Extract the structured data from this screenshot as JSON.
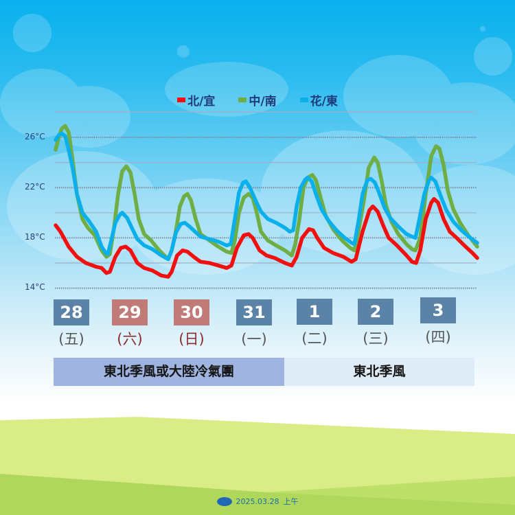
{
  "legend": [
    {
      "label": "北/宜",
      "color": "#f20f0f"
    },
    {
      "label": "中/南",
      "color": "#6fad45"
    },
    {
      "label": "花/東",
      "color": "#0bb0ea"
    }
  ],
  "yaxis_ticks": [
    {
      "label": "26°C",
      "value": 26
    },
    {
      "label": "22°C",
      "value": 22
    },
    {
      "label": "18°C",
      "value": 18
    },
    {
      "label": "14°C",
      "value": 14
    }
  ],
  "days": [
    {
      "date": "28",
      "weekday": "(五)",
      "type": "weekday",
      "box_color": "#5b83a8",
      "text_color": "#555555"
    },
    {
      "date": "29",
      "weekday": "(六)",
      "type": "weekend",
      "box_color": "#c07a78",
      "text_color": "#8a2a2a"
    },
    {
      "date": "30",
      "weekday": "(日)",
      "type": "weekend",
      "box_color": "#c07a78",
      "text_color": "#8a2a2a"
    },
    {
      "date": "31",
      "weekday": "(一)",
      "type": "weekday",
      "box_color": "#5b83a8",
      "text_color": "#555555"
    },
    {
      "date": "1",
      "weekday": "(二)",
      "type": "weekday",
      "box_color": "#5b83a8",
      "text_color": "#555555"
    },
    {
      "date": "2",
      "weekday": "(三)",
      "type": "weekday",
      "box_color": "#5b83a8",
      "text_color": "#555555"
    },
    {
      "date": "3",
      "weekday": "(四)",
      "type": "weekday",
      "box_color": "#5b83a8",
      "text_color": "#555555"
    }
  ],
  "banners": [
    {
      "label": "東北季風或大陸冷氣團",
      "color": "#9fb4e0"
    },
    {
      "label": "東北季風",
      "color": "#ddecf6"
    }
  ],
  "footer": {
    "date": "2025.03.28",
    "period": "上午"
  },
  "chart_data": {
    "type": "line",
    "title": "",
    "xlabel": "",
    "ylabel": "°C",
    "ylim": [
      14,
      28
    ],
    "grid": true,
    "legend_position": "top",
    "categories": [
      "28 (五)",
      "29 (六)",
      "30 (日)",
      "31 (一)",
      "1 (二)",
      "2 (三)",
      "3 (四)"
    ],
    "x_note": "x = horizontal position across the 7-day span (81 = start of 28th, 695 = end of 3rd)",
    "series": [
      {
        "name": "北/宜",
        "color": "#f20f0f",
        "points": [
          [
            81,
            19.0
          ],
          [
            88,
            18.5
          ],
          [
            100,
            17.3
          ],
          [
            112,
            16.5
          ],
          [
            125,
            16.0
          ],
          [
            140,
            15.7
          ],
          [
            148,
            15.6
          ],
          [
            155,
            15.2
          ],
          [
            160,
            15.3
          ],
          [
            168,
            16.5
          ],
          [
            176,
            17.2
          ],
          [
            183,
            17.3
          ],
          [
            190,
            17.0
          ],
          [
            200,
            16.0
          ],
          [
            210,
            15.6
          ],
          [
            222,
            15.4
          ],
          [
            235,
            15.0
          ],
          [
            245,
            14.9
          ],
          [
            250,
            15.3
          ],
          [
            258,
            16.6
          ],
          [
            266,
            17.0
          ],
          [
            273,
            16.9
          ],
          [
            282,
            16.5
          ],
          [
            292,
            16.1
          ],
          [
            305,
            16.0
          ],
          [
            318,
            15.8
          ],
          [
            330,
            15.6
          ],
          [
            337,
            15.8
          ],
          [
            345,
            17.2
          ],
          [
            355,
            18.2
          ],
          [
            362,
            18.3
          ],
          [
            368,
            18.0
          ],
          [
            378,
            17.0
          ],
          [
            388,
            16.6
          ],
          [
            400,
            16.4
          ],
          [
            415,
            16.0
          ],
          [
            425,
            15.8
          ],
          [
            432,
            16.5
          ],
          [
            440,
            18.0
          ],
          [
            450,
            18.7
          ],
          [
            456,
            18.6
          ],
          [
            462,
            18.0
          ],
          [
            472,
            17.2
          ],
          [
            485,
            16.8
          ],
          [
            500,
            16.5
          ],
          [
            512,
            16.1
          ],
          [
            518,
            16.3
          ],
          [
            528,
            18.5
          ],
          [
            538,
            20.2
          ],
          [
            543,
            20.5
          ],
          [
            550,
            20.1
          ],
          [
            558,
            19.0
          ],
          [
            566,
            18.0
          ],
          [
            578,
            17.4
          ],
          [
            592,
            16.6
          ],
          [
            600,
            16.1
          ],
          [
            606,
            16.0
          ],
          [
            612,
            17.0
          ],
          [
            620,
            19.5
          ],
          [
            628,
            20.8
          ],
          [
            632,
            21.1
          ],
          [
            638,
            20.8
          ],
          [
            646,
            19.5
          ],
          [
            655,
            18.5
          ],
          [
            665,
            18.0
          ],
          [
            678,
            17.3
          ],
          [
            688,
            16.8
          ],
          [
            695,
            16.4
          ]
        ]
      },
      {
        "name": "中/南",
        "color": "#6fad45",
        "points": [
          [
            81,
            25.0
          ],
          [
            85,
            25.9
          ],
          [
            90,
            26.7
          ],
          [
            95,
            26.9
          ],
          [
            100,
            26.4
          ],
          [
            105,
            24.5
          ],
          [
            112,
            21.5
          ],
          [
            120,
            19.5
          ],
          [
            128,
            18.8
          ],
          [
            138,
            18.2
          ],
          [
            148,
            17.0
          ],
          [
            155,
            16.5
          ],
          [
            160,
            16.7
          ],
          [
            166,
            18.8
          ],
          [
            172,
            21.5
          ],
          [
            178,
            23.3
          ],
          [
            184,
            23.7
          ],
          [
            190,
            23.2
          ],
          [
            196,
            21.5
          ],
          [
            202,
            19.5
          ],
          [
            210,
            18.3
          ],
          [
            220,
            17.8
          ],
          [
            232,
            17.0
          ],
          [
            245,
            16.3
          ],
          [
            250,
            17.0
          ],
          [
            256,
            18.5
          ],
          [
            262,
            20.5
          ],
          [
            268,
            21.3
          ],
          [
            273,
            21.5
          ],
          [
            278,
            21.0
          ],
          [
            285,
            19.5
          ],
          [
            292,
            18.3
          ],
          [
            305,
            17.8
          ],
          [
            318,
            17.3
          ],
          [
            330,
            16.9
          ],
          [
            337,
            16.8
          ],
          [
            342,
            17.8
          ],
          [
            348,
            20.0
          ],
          [
            355,
            21.2
          ],
          [
            362,
            21.5
          ],
          [
            368,
            21.2
          ],
          [
            374,
            20.0
          ],
          [
            380,
            18.5
          ],
          [
            390,
            17.8
          ],
          [
            402,
            17.4
          ],
          [
            415,
            17.0
          ],
          [
            425,
            16.6
          ],
          [
            430,
            17.5
          ],
          [
            436,
            19.5
          ],
          [
            442,
            22.0
          ],
          [
            448,
            22.8
          ],
          [
            455,
            23.0
          ],
          [
            460,
            22.6
          ],
          [
            466,
            21.4
          ],
          [
            474,
            19.8
          ],
          [
            485,
            18.7
          ],
          [
            498,
            17.8
          ],
          [
            510,
            17.2
          ],
          [
            516,
            17.0
          ],
          [
            522,
            18.5
          ],
          [
            530,
            21.0
          ],
          [
            537,
            23.6
          ],
          [
            545,
            24.4
          ],
          [
            550,
            24.0
          ],
          [
            556,
            22.5
          ],
          [
            562,
            20.6
          ],
          [
            570,
            19.3
          ],
          [
            580,
            18.3
          ],
          [
            592,
            17.5
          ],
          [
            600,
            17.1
          ],
          [
            605,
            17.0
          ],
          [
            612,
            18.0
          ],
          [
            620,
            21.5
          ],
          [
            628,
            24.5
          ],
          [
            635,
            25.3
          ],
          [
            640,
            25.1
          ],
          [
            646,
            23.8
          ],
          [
            652,
            21.8
          ],
          [
            660,
            20.3
          ],
          [
            670,
            19.2
          ],
          [
            682,
            18.2
          ],
          [
            695,
            17.3
          ]
        ]
      },
      {
        "name": "花/東",
        "color": "#0bb0ea",
        "points": [
          [
            81,
            25.8
          ],
          [
            86,
            26.2
          ],
          [
            90,
            26.3
          ],
          [
            95,
            26.1
          ],
          [
            100,
            25.0
          ],
          [
            106,
            23.5
          ],
          [
            112,
            21.5
          ],
          [
            120,
            20.0
          ],
          [
            130,
            19.3
          ],
          [
            140,
            18.5
          ],
          [
            148,
            17.3
          ],
          [
            154,
            16.8
          ],
          [
            157,
            16.7
          ],
          [
            162,
            17.8
          ],
          [
            168,
            19.2
          ],
          [
            174,
            19.8
          ],
          [
            178,
            20.0
          ],
          [
            185,
            19.6
          ],
          [
            192,
            18.8
          ],
          [
            200,
            17.9
          ],
          [
            210,
            17.4
          ],
          [
            222,
            17.1
          ],
          [
            235,
            16.6
          ],
          [
            245,
            16.3
          ],
          [
            250,
            17.0
          ],
          [
            256,
            18.4
          ],
          [
            263,
            19.1
          ],
          [
            269,
            19.2
          ],
          [
            276,
            18.9
          ],
          [
            284,
            18.5
          ],
          [
            292,
            18.1
          ],
          [
            305,
            17.9
          ],
          [
            318,
            17.7
          ],
          [
            330,
            17.4
          ],
          [
            336,
            17.5
          ],
          [
            342,
            19.5
          ],
          [
            348,
            21.6
          ],
          [
            354,
            22.4
          ],
          [
            358,
            22.5
          ],
          [
            364,
            22.0
          ],
          [
            372,
            21.0
          ],
          [
            380,
            20.1
          ],
          [
            390,
            19.5
          ],
          [
            402,
            19.2
          ],
          [
            415,
            18.8
          ],
          [
            422,
            18.5
          ],
          [
            427,
            18.6
          ],
          [
            432,
            20.5
          ],
          [
            438,
            22.0
          ],
          [
            444,
            22.6
          ],
          [
            448,
            22.8
          ],
          [
            454,
            22.5
          ],
          [
            460,
            21.5
          ],
          [
            468,
            20.3
          ],
          [
            478,
            19.4
          ],
          [
            490,
            18.6
          ],
          [
            502,
            18.0
          ],
          [
            512,
            17.6
          ],
          [
            516,
            17.5
          ],
          [
            522,
            19.3
          ],
          [
            528,
            21.5
          ],
          [
            535,
            22.6
          ],
          [
            540,
            22.7
          ],
          [
            546,
            22.4
          ],
          [
            552,
            21.6
          ],
          [
            560,
            20.4
          ],
          [
            568,
            19.6
          ],
          [
            580,
            18.9
          ],
          [
            592,
            18.3
          ],
          [
            600,
            18.1
          ],
          [
            605,
            18.0
          ],
          [
            610,
            19.3
          ],
          [
            618,
            21.5
          ],
          [
            625,
            22.6
          ],
          [
            628,
            22.8
          ],
          [
            634,
            22.5
          ],
          [
            642,
            21.3
          ],
          [
            650,
            20.2
          ],
          [
            660,
            19.3
          ],
          [
            672,
            18.6
          ],
          [
            685,
            18.0
          ],
          [
            695,
            17.6
          ]
        ]
      }
    ]
  }
}
